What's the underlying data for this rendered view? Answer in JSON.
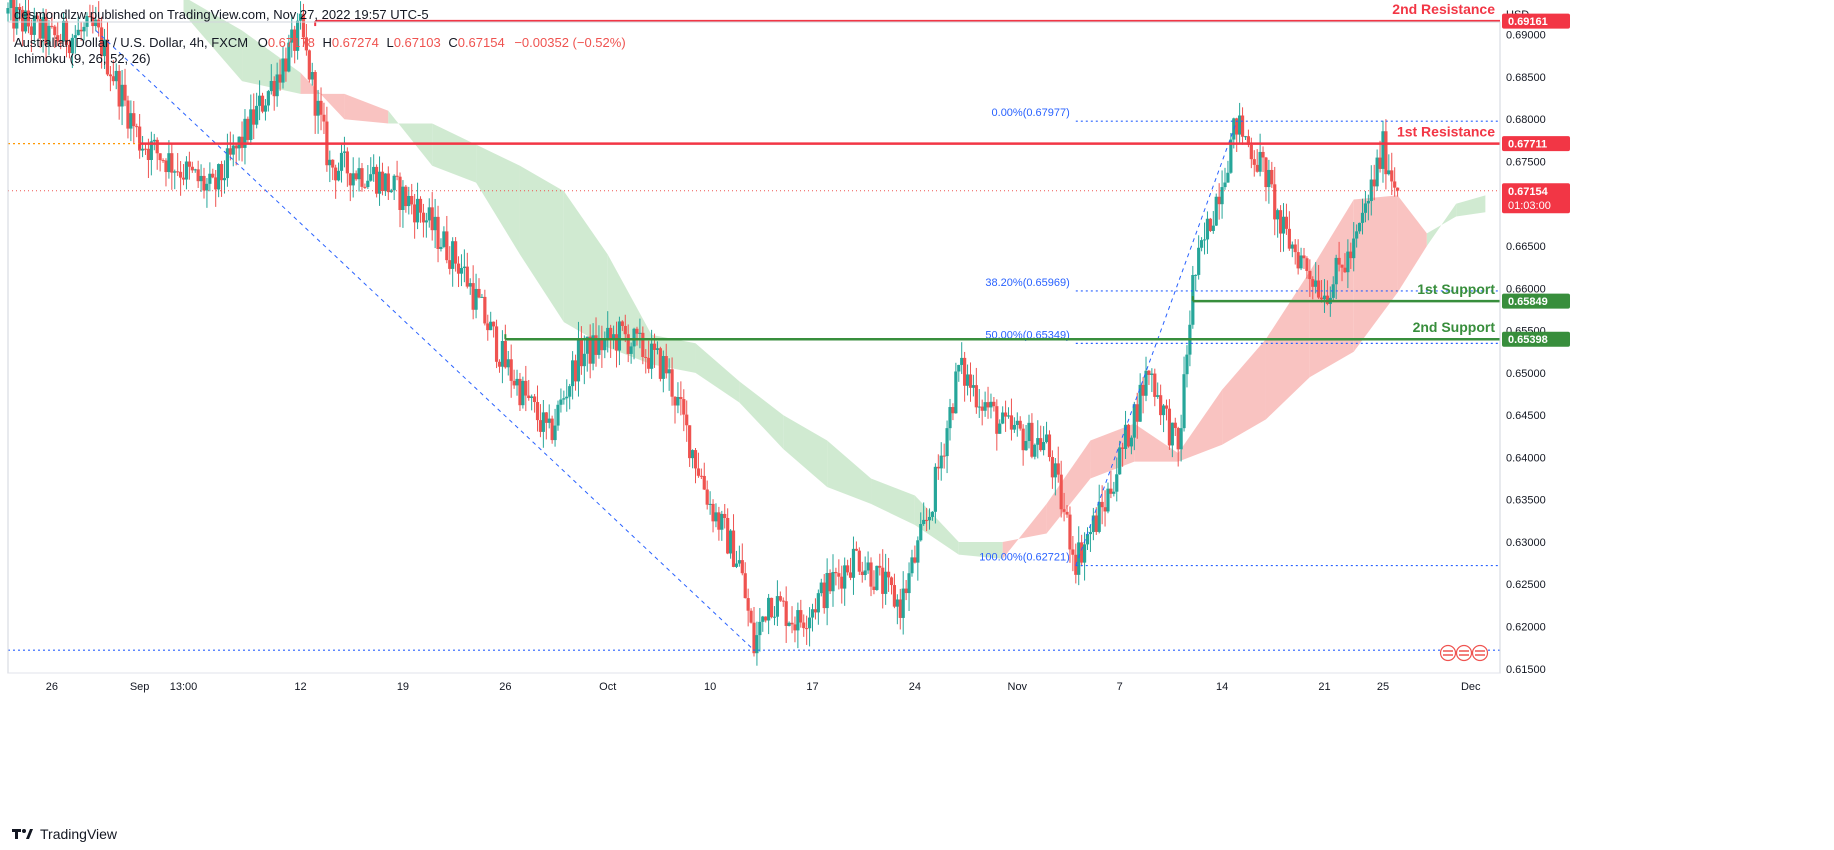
{
  "header": {
    "published": "desmondlzw published on TradingView.com, Nov 27, 2022 19:57 UTC-5",
    "symbol": "Australian Dollar / U.S. Dollar, 4h, FXCM",
    "open_label": "O",
    "open": "0.67178",
    "high_label": "H",
    "high": "0.67274",
    "low_label": "L",
    "low": "0.67103",
    "close_label": "C",
    "close": "0.67154",
    "change": "−0.00352 (−0.52%)",
    "indicator": "Ichimoku (9, 26, 52, 26)"
  },
  "footer": {
    "brand": "TradingView"
  },
  "colors": {
    "up": "#26a69a",
    "down": "#ef5350",
    "resistance": "#f23645",
    "support": "#388e3c",
    "fib": "#2962ff",
    "cloud_bear": "#f8b9b6",
    "cloud_bull": "#c8e6c9",
    "axis_text": "#131722"
  },
  "chart_data": {
    "type": "candlestick",
    "currency_label": "USD",
    "y_axis": {
      "range": [
        0.6145,
        0.6915
      ],
      "ticks": [
        "0.69000",
        "0.68500",
        "0.68000",
        "0.67500",
        "0.67000",
        "0.66500",
        "0.66000",
        "0.65500",
        "0.65000",
        "0.64500",
        "0.64000",
        "0.63500",
        "0.63000",
        "0.62500",
        "0.62000",
        "0.61500"
      ]
    },
    "x_axis": {
      "range": [
        "2022-08-23",
        "2022-12-03"
      ],
      "ticks": [
        {
          "label": "26",
          "date": "2022-08-26"
        },
        {
          "label": "Sep",
          "date": "2022-09-01"
        },
        {
          "label": "13:00",
          "date": "2022-09-04"
        },
        {
          "label": "12",
          "date": "2022-09-12"
        },
        {
          "label": "19",
          "date": "2022-09-19"
        },
        {
          "label": "26",
          "date": "2022-09-26"
        },
        {
          "label": "Oct",
          "date": "2022-10-03"
        },
        {
          "label": "10",
          "date": "2022-10-10"
        },
        {
          "label": "17",
          "date": "2022-10-17"
        },
        {
          "label": "24",
          "date": "2022-10-24"
        },
        {
          "label": "Nov",
          "date": "2022-10-31"
        },
        {
          "label": "7",
          "date": "2022-11-07"
        },
        {
          "label": "14",
          "date": "2022-11-14"
        },
        {
          "label": "21",
          "date": "2022-11-21"
        },
        {
          "label": "25",
          "date": "2022-11-25"
        },
        {
          "label": "Dec",
          "date": "2022-12-01"
        }
      ]
    },
    "price_path": [
      {
        "date": "2022-08-23",
        "price": 0.6925
      },
      {
        "date": "2022-08-26",
        "price": 0.6895
      },
      {
        "date": "2022-08-29",
        "price": 0.6905
      },
      {
        "date": "2022-09-01",
        "price": 0.6775
      },
      {
        "date": "2022-09-06",
        "price": 0.6715
      },
      {
        "date": "2022-09-08",
        "price": 0.6775
      },
      {
        "date": "2022-09-12",
        "price": 0.6905
      },
      {
        "date": "2022-09-14",
        "price": 0.6745
      },
      {
        "date": "2022-09-17",
        "price": 0.6735
      },
      {
        "date": "2022-09-20",
        "price": 0.6695
      },
      {
        "date": "2022-09-23",
        "price": 0.6625
      },
      {
        "date": "2022-09-26",
        "price": 0.651
      },
      {
        "date": "2022-09-29",
        "price": 0.6425
      },
      {
        "date": "2022-10-01",
        "price": 0.652
      },
      {
        "date": "2022-10-04",
        "price": 0.6545
      },
      {
        "date": "2022-10-07",
        "price": 0.6505
      },
      {
        "date": "2022-10-10",
        "price": 0.6345
      },
      {
        "date": "2022-10-12",
        "price": 0.6275
      },
      {
        "date": "2022-10-13",
        "price": 0.6175
      },
      {
        "date": "2022-10-14",
        "price": 0.6235
      },
      {
        "date": "2022-10-16",
        "price": 0.6205
      },
      {
        "date": "2022-10-20",
        "price": 0.6285
      },
      {
        "date": "2022-10-23",
        "price": 0.6225
      },
      {
        "date": "2022-10-25",
        "price": 0.6335
      },
      {
        "date": "2022-10-27",
        "price": 0.6505
      },
      {
        "date": "2022-10-30",
        "price": 0.6435
      },
      {
        "date": "2022-11-02",
        "price": 0.6415
      },
      {
        "date": "2022-11-04",
        "price": 0.628
      },
      {
        "date": "2022-11-06",
        "price": 0.6345
      },
      {
        "date": "2022-11-09",
        "price": 0.6505
      },
      {
        "date": "2022-11-11",
        "price": 0.6405
      },
      {
        "date": "2022-11-12",
        "price": 0.6605
      },
      {
        "date": "2022-11-15",
        "price": 0.6795
      },
      {
        "date": "2022-11-17",
        "price": 0.6735
      },
      {
        "date": "2022-11-18",
        "price": 0.667
      },
      {
        "date": "2022-11-21",
        "price": 0.6595
      },
      {
        "date": "2022-11-23",
        "price": 0.6645
      },
      {
        "date": "2022-11-25",
        "price": 0.6765
      },
      {
        "date": "2022-11-26",
        "price": 0.6715
      }
    ],
    "levels": [
      {
        "label": "2nd Resistance",
        "price": 0.69161,
        "price_label": "0.69161",
        "type": "resistance",
        "from": "2022-09-13"
      },
      {
        "label": "1st Resistance",
        "price": 0.67711,
        "price_label": "0.67711",
        "type": "resistance",
        "from": "2022-09-01"
      },
      {
        "label": "1st Support",
        "price": 0.65849,
        "price_label": "0.65849",
        "type": "support",
        "from": "2022-11-12"
      },
      {
        "label": "2nd Support",
        "price": 0.65398,
        "price_label": "0.65398",
        "type": "support",
        "from": "2022-09-26"
      }
    ],
    "current_price": {
      "price": 0.67154,
      "label": "0.67154",
      "timer": "01:03:00"
    },
    "fibonacci": {
      "from": "2022-11-04",
      "to": "2022-12-03",
      "anchor_low": {
        "date": "2022-11-04",
        "price": 0.62721
      },
      "anchor_high": {
        "date": "2022-11-15",
        "price": 0.67977
      },
      "levels": [
        {
          "label": "0.00%(0.67977)",
          "price": 0.67977
        },
        {
          "label": "38.20%(0.65969)",
          "price": 0.65969
        },
        {
          "label": "50.00%(0.65349)",
          "price": 0.65349
        },
        {
          "label": "100.00%(0.62721)",
          "price": 0.62721
        }
      ]
    },
    "trendline": {
      "from": {
        "date": "2022-08-29",
        "price": 0.6905
      },
      "to": {
        "date": "2022-10-13",
        "price": 0.6172
      }
    },
    "bottom_line": {
      "price": 0.6172,
      "from": "2022-08-23"
    },
    "ichimoku_cloud": [
      {
        "date": "2022-09-04",
        "a": 0.6945,
        "b": 0.6925
      },
      {
        "date": "2022-09-08",
        "a": 0.6905,
        "b": 0.6845
      },
      {
        "date": "2022-09-12",
        "a": 0.6855,
        "b": 0.683
      },
      {
        "date": "2022-09-15",
        "a": 0.68,
        "b": 0.683
      },
      {
        "date": "2022-09-18",
        "a": 0.6795,
        "b": 0.681
      },
      {
        "date": "2022-09-21",
        "a": 0.6795,
        "b": 0.6745
      },
      {
        "date": "2022-09-24",
        "a": 0.677,
        "b": 0.6725
      },
      {
        "date": "2022-09-27",
        "a": 0.6745,
        "b": 0.664
      },
      {
        "date": "2022-09-30",
        "a": 0.6715,
        "b": 0.656
      },
      {
        "date": "2022-10-03",
        "a": 0.664,
        "b": 0.653
      },
      {
        "date": "2022-10-06",
        "a": 0.6545,
        "b": 0.651
      },
      {
        "date": "2022-10-09",
        "a": 0.6535,
        "b": 0.65
      },
      {
        "date": "2022-10-12",
        "a": 0.649,
        "b": 0.6465
      },
      {
        "date": "2022-10-15",
        "a": 0.645,
        "b": 0.641
      },
      {
        "date": "2022-10-18",
        "a": 0.642,
        "b": 0.6365
      },
      {
        "date": "2022-10-21",
        "a": 0.6375,
        "b": 0.6345
      },
      {
        "date": "2022-10-24",
        "a": 0.6355,
        "b": 0.632
      },
      {
        "date": "2022-10-27",
        "a": 0.63,
        "b": 0.6285
      },
      {
        "date": "2022-10-30",
        "a": 0.63,
        "b": 0.628
      },
      {
        "date": "2022-11-02",
        "a": 0.631,
        "b": 0.6345
      },
      {
        "date": "2022-11-05",
        "a": 0.6375,
        "b": 0.642
      },
      {
        "date": "2022-11-08",
        "a": 0.6395,
        "b": 0.644
      },
      {
        "date": "2022-11-11",
        "a": 0.6395,
        "b": 0.6405
      },
      {
        "date": "2022-11-14",
        "a": 0.6415,
        "b": 0.648
      },
      {
        "date": "2022-11-17",
        "a": 0.6445,
        "b": 0.654
      },
      {
        "date": "2022-11-20",
        "a": 0.6495,
        "b": 0.662
      },
      {
        "date": "2022-11-23",
        "a": 0.6525,
        "b": 0.6705
      },
      {
        "date": "2022-11-26",
        "a": 0.6595,
        "b": 0.671
      },
      {
        "date": "2022-11-28",
        "a": 0.665,
        "b": 0.6665
      },
      {
        "date": "2022-11-30",
        "a": 0.67,
        "b": 0.6685
      },
      {
        "date": "2022-12-02",
        "a": 0.671,
        "b": 0.669
      }
    ]
  }
}
